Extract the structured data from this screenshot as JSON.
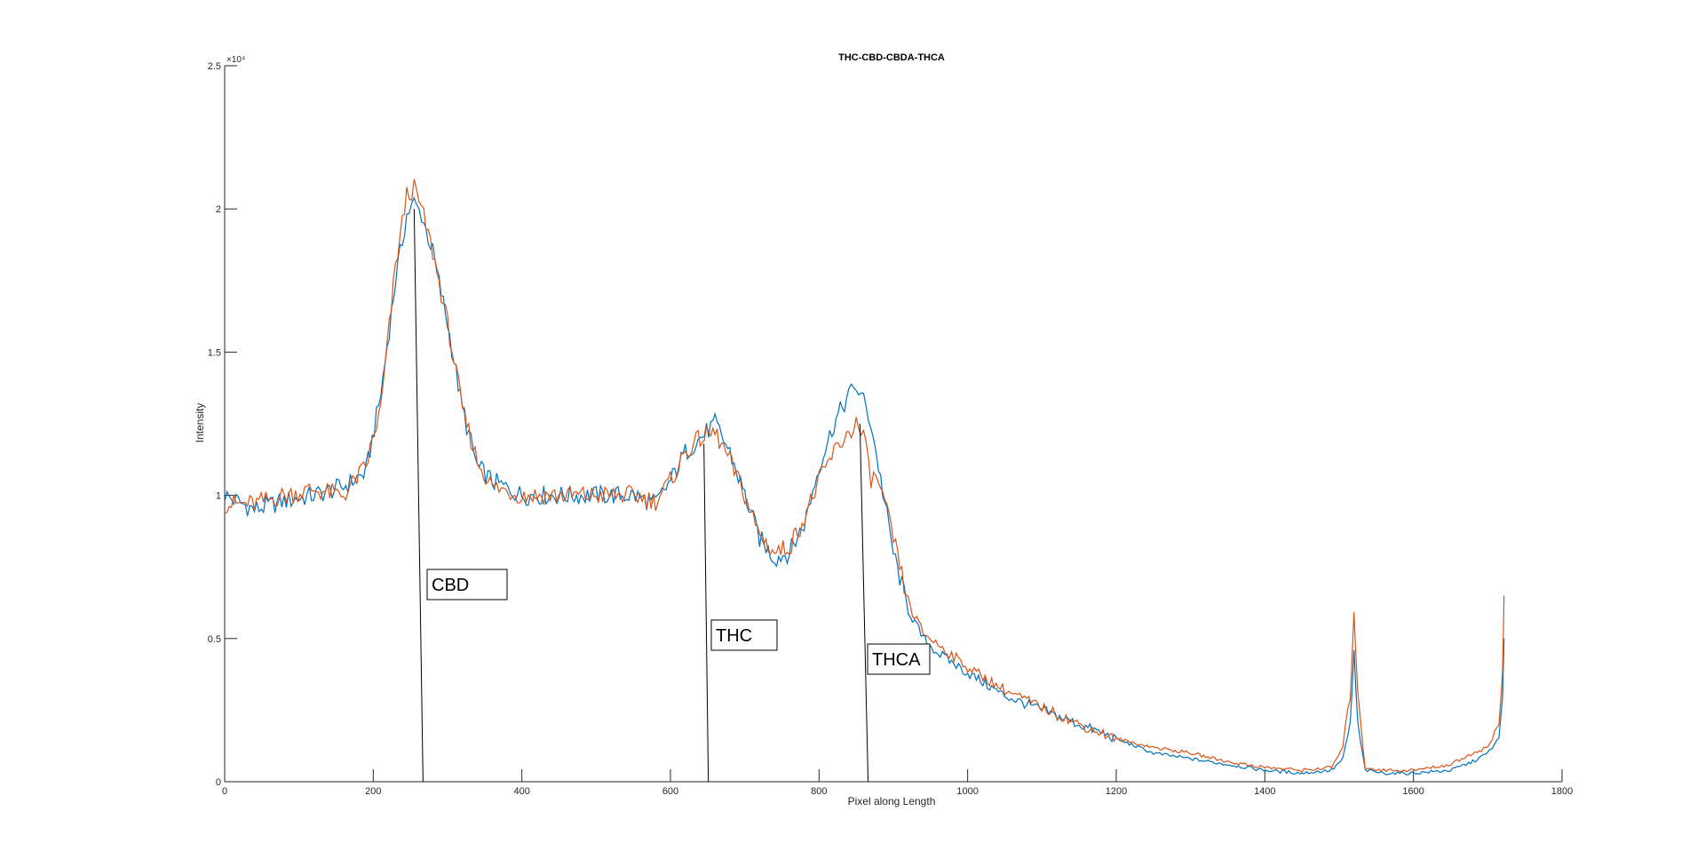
{
  "chart_data": {
    "type": "line",
    "title": "THC-CBD-CBDA-THCA",
    "xlabel": "Pixel along Length",
    "ylabel": "Intensity",
    "xlim": [
      0,
      1800
    ],
    "ylim": [
      0,
      2.5
    ],
    "y_exponent_label": "×10⁴",
    "xticks": [
      0,
      200,
      400,
      600,
      800,
      1000,
      1200,
      1400,
      1600,
      1800
    ],
    "yticks": [
      0,
      0.5,
      1,
      1.5,
      2,
      2.5
    ],
    "xtick_labels": [
      "0",
      "200",
      "400",
      "600",
      "800",
      "1000",
      "1200",
      "1400",
      "1600",
      "1800"
    ],
    "ytick_labels": [
      "0",
      "0.5",
      "1",
      "1.5",
      "2",
      "2.5"
    ],
    "grid": false,
    "series": [
      {
        "color": "#0072BD",
        "x": [
          0,
          40,
          80,
          120,
          160,
          190,
          210,
          230,
          245,
          255,
          265,
          280,
          300,
          320,
          340,
          360,
          400,
          450,
          500,
          550,
          580,
          600,
          620,
          640,
          660,
          680,
          700,
          720,
          740,
          760,
          780,
          800,
          820,
          840,
          850,
          860,
          870,
          880,
          900,
          920,
          940,
          960,
          1000,
          1050,
          1100,
          1150,
          1200,
          1250,
          1300,
          1350,
          1400,
          1450,
          1490,
          1505,
          1515,
          1520,
          1525,
          1535,
          1560,
          1600,
          1650,
          1680,
          1700,
          1715,
          1720,
          1722
        ],
        "y": [
          1.0,
          0.95,
          0.98,
          1.0,
          1.03,
          1.08,
          1.35,
          1.75,
          1.98,
          2.02,
          1.98,
          1.85,
          1.6,
          1.3,
          1.1,
          1.05,
          1.0,
          1.0,
          1.0,
          1.0,
          0.97,
          1.05,
          1.15,
          1.2,
          1.25,
          1.15,
          1.0,
          0.85,
          0.78,
          0.8,
          0.9,
          1.1,
          1.25,
          1.35,
          1.38,
          1.33,
          1.25,
          1.1,
          0.8,
          0.6,
          0.5,
          0.45,
          0.38,
          0.3,
          0.25,
          0.2,
          0.15,
          0.1,
          0.08,
          0.06,
          0.04,
          0.03,
          0.04,
          0.08,
          0.2,
          0.45,
          0.2,
          0.04,
          0.03,
          0.03,
          0.04,
          0.07,
          0.1,
          0.15,
          0.3,
          0.5
        ]
      },
      {
        "color": "#D95319",
        "x": [
          0,
          40,
          80,
          120,
          160,
          190,
          210,
          230,
          245,
          255,
          265,
          280,
          300,
          320,
          340,
          360,
          400,
          450,
          500,
          550,
          580,
          600,
          620,
          640,
          660,
          680,
          700,
          720,
          740,
          760,
          780,
          800,
          820,
          840,
          850,
          860,
          870,
          880,
          900,
          920,
          940,
          960,
          1000,
          1050,
          1100,
          1150,
          1200,
          1250,
          1300,
          1350,
          1400,
          1450,
          1490,
          1505,
          1515,
          1520,
          1525,
          1535,
          1560,
          1600,
          1650,
          1680,
          1700,
          1715,
          1720,
          1722
        ],
        "y": [
          0.97,
          0.97,
          1.0,
          1.02,
          1.0,
          1.1,
          1.3,
          1.8,
          2.05,
          2.07,
          2.0,
          1.85,
          1.6,
          1.3,
          1.12,
          1.03,
          1.0,
          1.0,
          1.0,
          1.0,
          0.98,
          1.05,
          1.15,
          1.2,
          1.22,
          1.12,
          1.0,
          0.86,
          0.8,
          0.82,
          0.92,
          1.05,
          1.15,
          1.22,
          1.25,
          1.2,
          1.06,
          1.05,
          0.85,
          0.62,
          0.52,
          0.48,
          0.4,
          0.32,
          0.26,
          0.2,
          0.15,
          0.12,
          0.1,
          0.07,
          0.05,
          0.04,
          0.05,
          0.12,
          0.3,
          0.6,
          0.3,
          0.05,
          0.04,
          0.04,
          0.06,
          0.1,
          0.12,
          0.2,
          0.4,
          0.65
        ]
      }
    ],
    "annotations": [
      {
        "text": "CBD",
        "line_from": [
          255,
          2.0
        ],
        "line_to": [
          267,
          0
        ]
      },
      {
        "text": "THC",
        "line_from": [
          645,
          1.18
        ],
        "line_to": [
          651,
          0
        ]
      },
      {
        "text": "THCA",
        "line_from": [
          855,
          1.25
        ],
        "line_to": [
          866,
          0
        ]
      }
    ]
  }
}
